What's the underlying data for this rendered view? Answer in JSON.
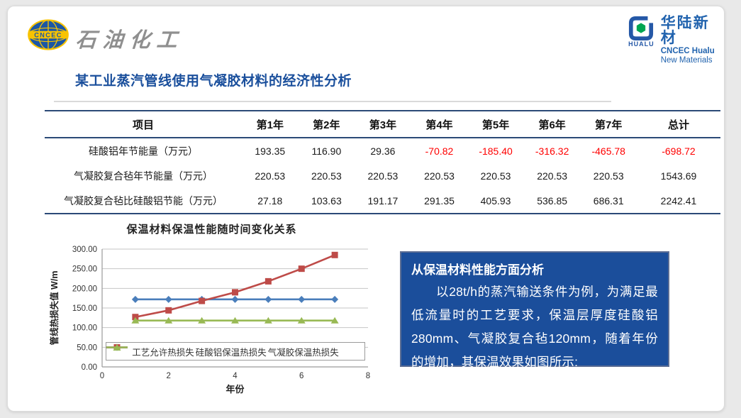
{
  "header": {
    "cncec_logo": {
      "abbr": "CNCEC",
      "brand_text": "石油化工"
    },
    "hualu_logo": {
      "cn": "华陆新材",
      "en1": "CNCEC Hualu",
      "en2": "New Materials",
      "icon_label": "HUALU"
    }
  },
  "title": "某工业蒸汽管线使用气凝胶材料的经济性分析",
  "table": {
    "headers": [
      "项目",
      "第1年",
      "第2年",
      "第3年",
      "第4年",
      "第5年",
      "第6年",
      "第7年",
      "总计"
    ],
    "rows": [
      {
        "label": "硅酸铝年节能量（万元）",
        "values": [
          "193.35",
          "116.90",
          "29.36",
          "-70.82",
          "-185.40",
          "-316.32",
          "-465.78",
          "-698.72"
        ]
      },
      {
        "label": "气凝胶复合毡年节能量（万元）",
        "values": [
          "220.53",
          "220.53",
          "220.53",
          "220.53",
          "220.53",
          "220.53",
          "220.53",
          "1543.69"
        ]
      },
      {
        "label": "气凝胶复合毡比硅酸铝节能（万元）",
        "values": [
          "27.18",
          "103.63",
          "191.17",
          "291.35",
          "405.93",
          "536.85",
          "686.31",
          "2242.41"
        ]
      }
    ],
    "negative_color": "#FF0000",
    "border_color": "#2B4A77"
  },
  "chart_data": {
    "type": "line",
    "title": "保温材料保温性能随时间变化关系",
    "xlabel": "年份",
    "ylabel": "管线热损失值 W/m",
    "x": [
      1,
      2,
      3,
      4,
      5,
      6,
      7
    ],
    "xlim": [
      0,
      8
    ],
    "xticks": [
      0,
      2,
      4,
      6,
      8
    ],
    "ylim": [
      0,
      300
    ],
    "yticks": [
      0,
      50,
      100,
      150,
      200,
      250,
      300
    ],
    "ytick_decimals": 2,
    "grid": true,
    "legend_position": "bottom-inside",
    "series": [
      {
        "name": "工艺允许热损失",
        "color": "#4A7EBB",
        "marker": "diamond",
        "values": [
          172,
          172,
          172,
          172,
          172,
          172,
          172
        ]
      },
      {
        "name": "硅酸铝保温热损失",
        "color": "#BE4B48",
        "marker": "square",
        "values": [
          127,
          144,
          168,
          190,
          218,
          250,
          285
        ]
      },
      {
        "name": "气凝胶保温热损失",
        "color": "#98B954",
        "marker": "triangle",
        "values": [
          118,
          118,
          118,
          118,
          118,
          118,
          118
        ]
      }
    ]
  },
  "info_box": {
    "heading": "从保温材料性能方面分析",
    "body": "以28t/h的蒸汽输送条件为例，为满足最低流量时的工艺要求，保温层厚度硅酸铝280mm、气凝胶复合毡120mm，随着年份的增加，其保温效果如图所示:",
    "bg_color": "#1B4E9B"
  },
  "colors": {
    "title_blue": "#1A4F9C",
    "logo_blue": "#1C57A5",
    "logo_yellow": "#F8C300",
    "hualu_blue": "#2163AE",
    "hualu_green": "#00A651",
    "grid_gray": "#C6C6C6",
    "axis_gray": "#9A9A9A"
  }
}
